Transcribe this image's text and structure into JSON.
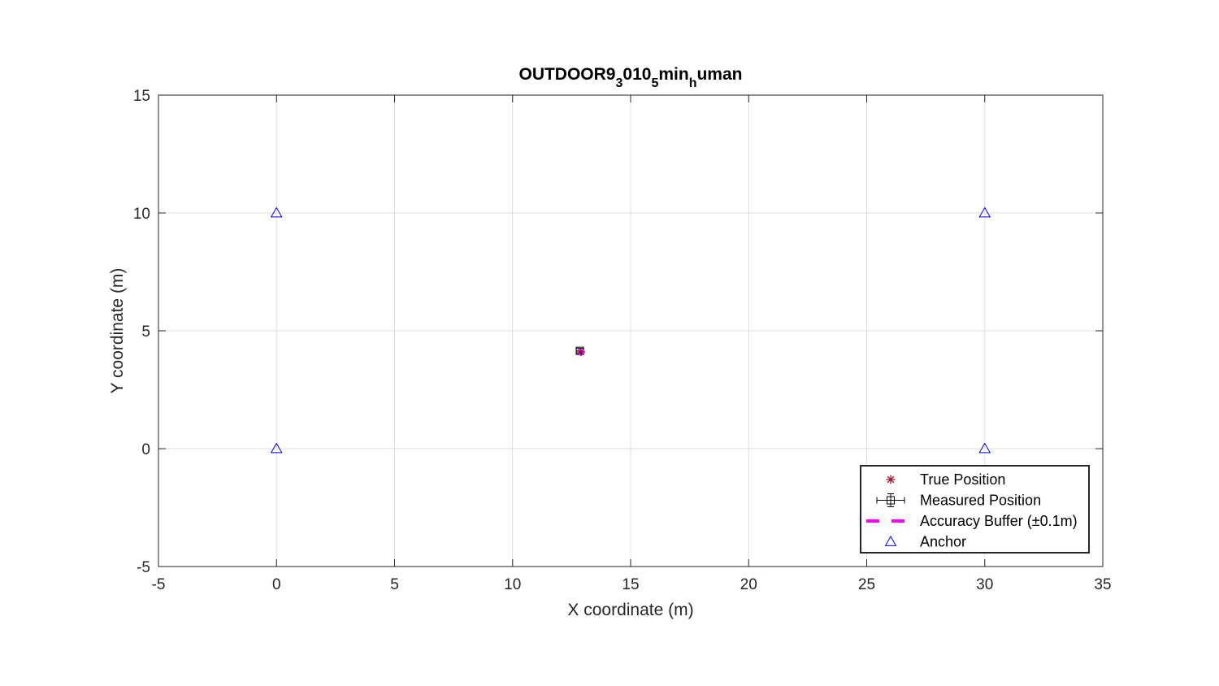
{
  "chart_data": {
    "type": "scatter",
    "title": {
      "parts": [
        {
          "text": "OUTDOOR9",
          "sub": false
        },
        {
          "text": "3",
          "sub": true
        },
        {
          "text": "010",
          "sub": false
        },
        {
          "text": "5",
          "sub": true
        },
        {
          "text": "min",
          "sub": false
        },
        {
          "text": "h",
          "sub": true
        },
        {
          "text": "uman",
          "sub": false
        }
      ]
    },
    "xlabel": "X coordinate (m)",
    "ylabel": "Y coordinate (m)",
    "xlim": [
      -5,
      35
    ],
    "ylim": [
      -5,
      15
    ],
    "xticks": [
      -5,
      0,
      5,
      10,
      15,
      20,
      25,
      30,
      35
    ],
    "yticks": [
      -5,
      0,
      5,
      10,
      15
    ],
    "grid": true,
    "legend_position": "bottom-right",
    "series": [
      {
        "name": "True Position",
        "marker": "asterisk",
        "color": "#a2142f",
        "points": [
          {
            "x": 12.9,
            "y": 4.1
          }
        ]
      },
      {
        "name": "Measured Position",
        "marker": "square-errorbar",
        "color": "#000000",
        "points": [
          {
            "x": 12.85,
            "y": 4.15,
            "xerr": 0.15,
            "yerr": 0.1
          }
        ]
      },
      {
        "name": "Accuracy Buffer (±0.1m)",
        "marker": "dashed-line",
        "color": "#ff00ff",
        "points": [
          {
            "x": 12.9,
            "y": 4.1,
            "r": 0.1
          }
        ]
      },
      {
        "name": "Anchor",
        "marker": "triangle",
        "color": "#0000ff",
        "points": [
          {
            "x": 0,
            "y": 0
          },
          {
            "x": 0,
            "y": 10
          },
          {
            "x": 30,
            "y": 0
          },
          {
            "x": 30,
            "y": 10
          }
        ]
      }
    ]
  }
}
